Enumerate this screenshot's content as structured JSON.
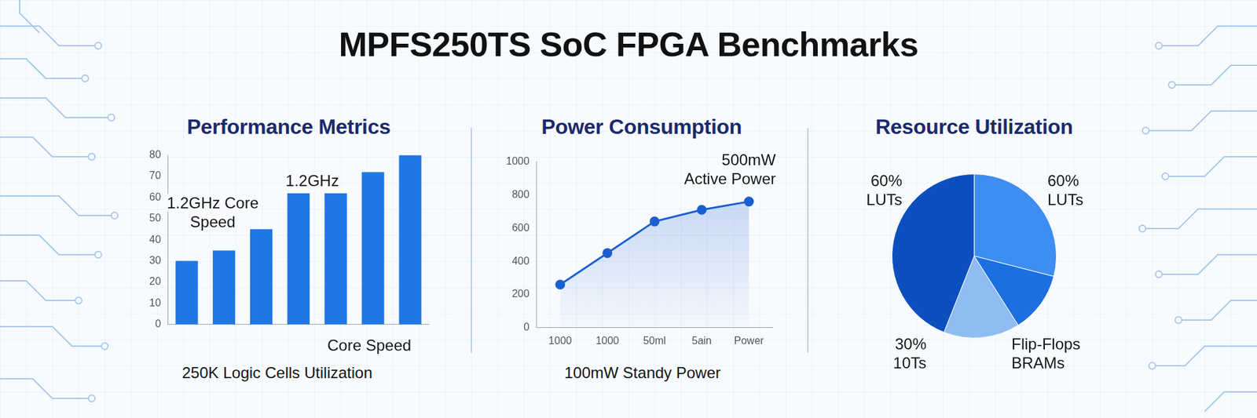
{
  "title": "MPFS250TS SoC FPGA Benchmarks",
  "chart_data": [
    {
      "type": "bar",
      "title": "Performance Metrics",
      "categories": [
        null,
        null,
        null,
        null,
        null,
        null,
        null
      ],
      "values": [
        30,
        35,
        45,
        62,
        62,
        72,
        80
      ],
      "color": "#1f77e6",
      "ylim": [
        0,
        80
      ],
      "yticks": [
        0,
        10,
        20,
        30,
        40,
        50,
        60,
        70,
        80
      ],
      "grid": false,
      "annotations": [
        [
          "1.2GHz Core",
          "Speed"
        ],
        [
          "1.2GHz"
        ],
        [
          "Core Speed"
        ],
        [
          "250K Logic Cells Utilization"
        ]
      ]
    },
    {
      "type": "line",
      "title": "Power Consumption",
      "categories": [
        "1000",
        "1000",
        "50ml",
        "5ain",
        "Power"
      ],
      "values": [
        260,
        450,
        640,
        710,
        760
      ],
      "color": "#1a5fd0",
      "ylim": [
        0,
        1000
      ],
      "yticks": [
        0,
        200,
        400,
        600,
        800,
        1000
      ],
      "grid": false,
      "marker": "circle",
      "annotations": [
        [
          "500mW",
          "Active Power"
        ],
        [
          "100mW Standy Power"
        ]
      ]
    },
    {
      "type": "pie",
      "title": "Resource Utilization",
      "values": [
        29,
        12,
        15,
        44
      ],
      "colors": [
        "#3d8ef0",
        "#1c6fe0",
        "#8ebcf3",
        "#0b4fbf"
      ],
      "annotations": [
        [
          "60%",
          "LUTs"
        ],
        [
          "60%",
          "LUTs"
        ],
        [
          "30%",
          "10Ts"
        ],
        [
          "Flip-Flops",
          "BRAMs"
        ]
      ]
    }
  ]
}
